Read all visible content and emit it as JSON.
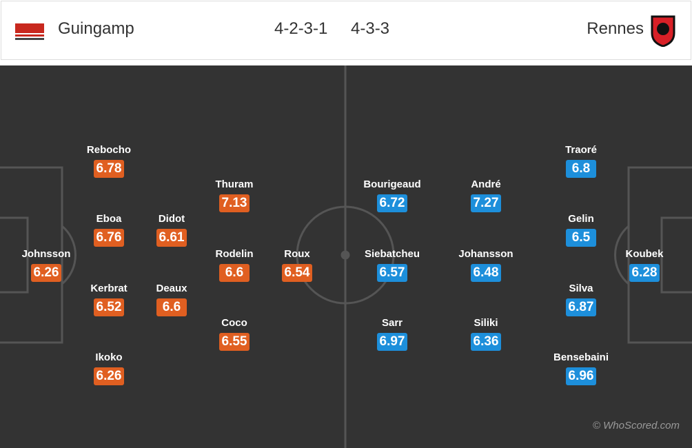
{
  "header": {
    "home_team": "Guingamp",
    "home_formation": "4-2-3-1",
    "away_formation": "4-3-3",
    "away_team": "Rennes"
  },
  "home_players": [
    {
      "name": "Johnsson",
      "rating": 6.26
    },
    {
      "name": "Rebocho",
      "rating": 6.78
    },
    {
      "name": "Eboa",
      "rating": 6.76
    },
    {
      "name": "Kerbrat",
      "rating": 6.52
    },
    {
      "name": "Ikoko",
      "rating": 6.26
    },
    {
      "name": "Didot",
      "rating": 6.61
    },
    {
      "name": "Deaux",
      "rating": 6.6
    },
    {
      "name": "Thuram",
      "rating": 7.13
    },
    {
      "name": "Rodelin",
      "rating": 6.6
    },
    {
      "name": "Coco",
      "rating": 6.55
    },
    {
      "name": "Roux",
      "rating": 6.54
    }
  ],
  "away_players": [
    {
      "name": "Koubek",
      "rating": 6.28
    },
    {
      "name": "Traoré",
      "rating": 6.8
    },
    {
      "name": "Gelin",
      "rating": 6.5
    },
    {
      "name": "Silva",
      "rating": 6.87
    },
    {
      "name": "Bensebaini",
      "rating": 6.96
    },
    {
      "name": "André",
      "rating": 7.27
    },
    {
      "name": "Johansson",
      "rating": 6.48
    },
    {
      "name": "Siliki",
      "rating": 6.36
    },
    {
      "name": "Bourigeaud",
      "rating": 6.72
    },
    {
      "name": "Siebatcheu",
      "rating": 6.57
    },
    {
      "name": "Sarr",
      "rating": 6.97
    }
  ],
  "watermark": "© WhoScored.com"
}
